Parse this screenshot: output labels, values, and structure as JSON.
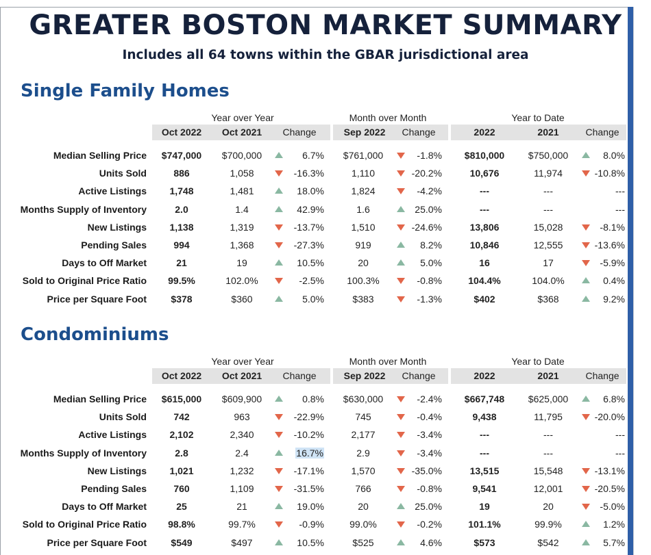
{
  "title": "GREATER BOSTON MARKET SUMMARY",
  "subtitle": "Includes all 64 towns within the GBAR jurisdictional area",
  "colors": {
    "title": "#15213b",
    "section": "#1c4e8c",
    "up_arrow": "#8ab8a2",
    "down_arrow": "#e2664a",
    "header_bg": "#e3e3e3",
    "right_bar": "#2f5fa8"
  },
  "groups": {
    "yoy": "Year over Year",
    "mom": "Month over Month",
    "ytd": "Year to Date"
  },
  "headers": {
    "cur": "Oct 2022",
    "prev_year": "Oct 2021",
    "change1": "Change",
    "prev_month": "Sep 2022",
    "change2": "Change",
    "ytd_cur": "2022",
    "ytd_prev": "2021",
    "change3": "Change"
  },
  "sections": [
    {
      "title": "Single Family Homes",
      "rows": [
        {
          "label": "Median Selling Price",
          "cur": "$747,000",
          "prev_year": "$700,000",
          "yoy_dir": "up",
          "yoy_change": "6.7%",
          "prev_month": "$761,000",
          "mom_dir": "down",
          "mom_change": "-1.8%",
          "ytd_cur": "$810,000",
          "ytd_prev": "$750,000",
          "ytd_dir": "up",
          "ytd_change": "8.0%"
        },
        {
          "label": "Units Sold",
          "cur": "886",
          "prev_year": "1,058",
          "yoy_dir": "down",
          "yoy_change": "-16.3%",
          "prev_month": "1,110",
          "mom_dir": "down",
          "mom_change": "-20.2%",
          "ytd_cur": "10,676",
          "ytd_prev": "11,974",
          "ytd_dir": "down",
          "ytd_change": "-10.8%"
        },
        {
          "label": "Active Listings",
          "cur": "1,748",
          "prev_year": "1,481",
          "yoy_dir": "up",
          "yoy_change": "18.0%",
          "prev_month": "1,824",
          "mom_dir": "down",
          "mom_change": "-4.2%",
          "ytd_cur": "---",
          "ytd_prev": "---",
          "ytd_dir": "none",
          "ytd_change": "---"
        },
        {
          "label": "Months Supply of Inventory",
          "cur": "2.0",
          "prev_year": "1.4",
          "yoy_dir": "up",
          "yoy_change": "42.9%",
          "prev_month": "1.6",
          "mom_dir": "up",
          "mom_change": "25.0%",
          "ytd_cur": "---",
          "ytd_prev": "---",
          "ytd_dir": "none",
          "ytd_change": "---"
        },
        {
          "label": "New Listings",
          "cur": "1,138",
          "prev_year": "1,319",
          "yoy_dir": "down",
          "yoy_change": "-13.7%",
          "prev_month": "1,510",
          "mom_dir": "down",
          "mom_change": "-24.6%",
          "ytd_cur": "13,806",
          "ytd_prev": "15,028",
          "ytd_dir": "down",
          "ytd_change": "-8.1%"
        },
        {
          "label": "Pending Sales",
          "cur": "994",
          "prev_year": "1,368",
          "yoy_dir": "down",
          "yoy_change": "-27.3%",
          "prev_month": "919",
          "mom_dir": "up",
          "mom_change": "8.2%",
          "ytd_cur": "10,846",
          "ytd_prev": "12,555",
          "ytd_dir": "down",
          "ytd_change": "-13.6%"
        },
        {
          "label": "Days to Off Market",
          "cur": "21",
          "prev_year": "19",
          "yoy_dir": "up",
          "yoy_change": "10.5%",
          "prev_month": "20",
          "mom_dir": "up",
          "mom_change": "5.0%",
          "ytd_cur": "16",
          "ytd_prev": "17",
          "ytd_dir": "down",
          "ytd_change": "-5.9%"
        },
        {
          "label": "Sold to Original Price Ratio",
          "cur": "99.5%",
          "prev_year": "102.0%",
          "yoy_dir": "down",
          "yoy_change": "-2.5%",
          "prev_month": "100.3%",
          "mom_dir": "down",
          "mom_change": "-0.8%",
          "ytd_cur": "104.4%",
          "ytd_prev": "104.0%",
          "ytd_dir": "up",
          "ytd_change": "0.4%"
        },
        {
          "label": "Price per Square Foot",
          "cur": "$378",
          "prev_year": "$360",
          "yoy_dir": "up",
          "yoy_change": "5.0%",
          "prev_month": "$383",
          "mom_dir": "down",
          "mom_change": "-1.3%",
          "ytd_cur": "$402",
          "ytd_prev": "$368",
          "ytd_dir": "up",
          "ytd_change": "9.2%"
        }
      ]
    },
    {
      "title": "Condominiums",
      "rows": [
        {
          "label": "Median Selling Price",
          "cur": "$615,000",
          "prev_year": "$609,900",
          "yoy_dir": "up",
          "yoy_change": "0.8%",
          "prev_month": "$630,000",
          "mom_dir": "down",
          "mom_change": "-2.4%",
          "ytd_cur": "$667,748",
          "ytd_prev": "$625,000",
          "ytd_dir": "up",
          "ytd_change": "6.8%"
        },
        {
          "label": "Units Sold",
          "cur": "742",
          "prev_year": "963",
          "yoy_dir": "down",
          "yoy_change": "-22.9%",
          "prev_month": "745",
          "mom_dir": "down",
          "mom_change": "-0.4%",
          "ytd_cur": "9,438",
          "ytd_prev": "11,795",
          "ytd_dir": "down",
          "ytd_change": "-20.0%"
        },
        {
          "label": "Active Listings",
          "cur": "2,102",
          "prev_year": "2,340",
          "yoy_dir": "down",
          "yoy_change": "-10.2%",
          "prev_month": "2,177",
          "mom_dir": "down",
          "mom_change": "-3.4%",
          "ytd_cur": "---",
          "ytd_prev": "---",
          "ytd_dir": "none",
          "ytd_change": "---"
        },
        {
          "label": "Months Supply of Inventory",
          "cur": "2.8",
          "prev_year": "2.4",
          "yoy_dir": "up",
          "yoy_change": "16.7%",
          "yoy_highlight": true,
          "prev_month": "2.9",
          "mom_dir": "down",
          "mom_change": "-3.4%",
          "ytd_cur": "---",
          "ytd_prev": "---",
          "ytd_dir": "none",
          "ytd_change": "---"
        },
        {
          "label": "New Listings",
          "cur": "1,021",
          "prev_year": "1,232",
          "yoy_dir": "down",
          "yoy_change": "-17.1%",
          "prev_month": "1,570",
          "mom_dir": "down",
          "mom_change": "-35.0%",
          "ytd_cur": "13,515",
          "ytd_prev": "15,548",
          "ytd_dir": "down",
          "ytd_change": "-13.1%"
        },
        {
          "label": "Pending Sales",
          "cur": "760",
          "prev_year": "1,109",
          "yoy_dir": "down",
          "yoy_change": "-31.5%",
          "prev_month": "766",
          "mom_dir": "down",
          "mom_change": "-0.8%",
          "ytd_cur": "9,541",
          "ytd_prev": "12,001",
          "ytd_dir": "down",
          "ytd_change": "-20.5%"
        },
        {
          "label": "Days to Off Market",
          "cur": "25",
          "prev_year": "21",
          "yoy_dir": "up",
          "yoy_change": "19.0%",
          "prev_month": "20",
          "mom_dir": "up",
          "mom_change": "25.0%",
          "ytd_cur": "19",
          "ytd_prev": "20",
          "ytd_dir": "down",
          "ytd_change": "-5.0%"
        },
        {
          "label": "Sold to Original Price Ratio",
          "cur": "98.8%",
          "prev_year": "99.7%",
          "yoy_dir": "down",
          "yoy_change": "-0.9%",
          "prev_month": "99.0%",
          "mom_dir": "down",
          "mom_change": "-0.2%",
          "ytd_cur": "101.1%",
          "ytd_prev": "99.9%",
          "ytd_dir": "up",
          "ytd_change": "1.2%"
        },
        {
          "label": "Price per Square Foot",
          "cur": "$549",
          "prev_year": "$497",
          "yoy_dir": "up",
          "yoy_change": "10.5%",
          "prev_month": "$525",
          "mom_dir": "up",
          "mom_change": "4.6%",
          "ytd_cur": "$573",
          "ytd_prev": "$542",
          "ytd_dir": "up",
          "ytd_change": "5.7%"
        }
      ]
    }
  ]
}
